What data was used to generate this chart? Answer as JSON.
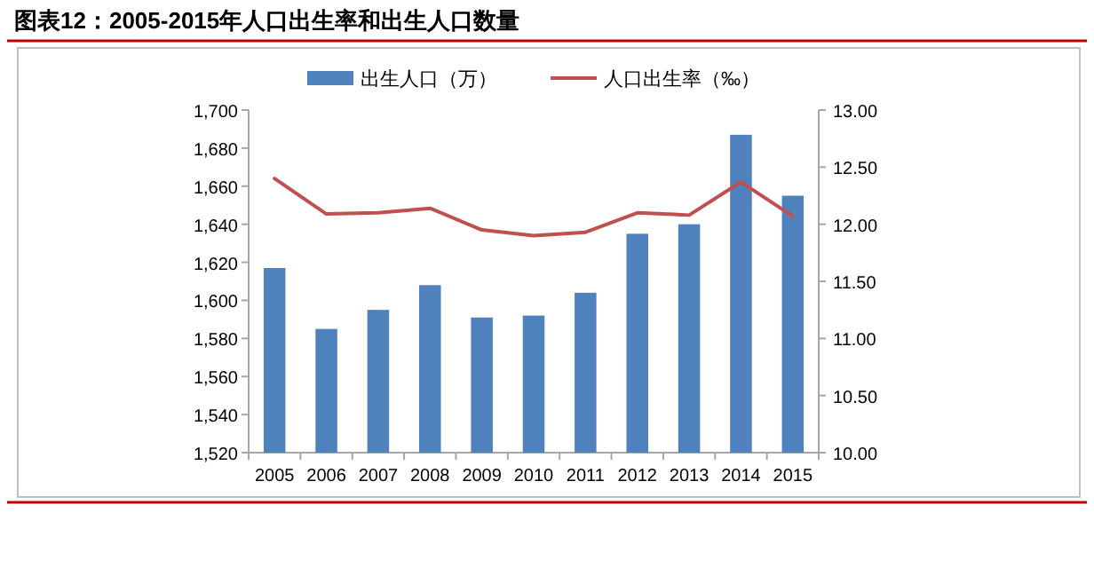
{
  "chart_data": {
    "type": "bar",
    "title": "图表12：2005-2015年人口出生率和出生人口数量",
    "categories": [
      "2005",
      "2006",
      "2007",
      "2008",
      "2009",
      "2010",
      "2011",
      "2012",
      "2013",
      "2014",
      "2015"
    ],
    "series": [
      {
        "name": "出生人口（万）",
        "color": "#4f81bd",
        "values": [
          1617,
          1585,
          1595,
          1608,
          1591,
          1592,
          1604,
          1635,
          1640,
          1687,
          1655
        ]
      },
      {
        "name": "人口出生率（‰）",
        "type": "line",
        "axis": "y2",
        "color": "#c0504d",
        "values": [
          12.4,
          12.09,
          12.1,
          12.14,
          11.95,
          11.9,
          11.93,
          12.1,
          12.08,
          12.37,
          12.07
        ]
      }
    ],
    "ylim": [
      1520,
      1700
    ],
    "yticks": [
      {
        "value": 1520,
        "label": "1,520"
      },
      {
        "value": 1540,
        "label": "1,540"
      },
      {
        "value": 1560,
        "label": "1,560"
      },
      {
        "value": 1580,
        "label": "1,580"
      },
      {
        "value": 1600,
        "label": "1,600"
      },
      {
        "value": 1620,
        "label": "1,620"
      },
      {
        "value": 1640,
        "label": "1,640"
      },
      {
        "value": 1660,
        "label": "1,660"
      },
      {
        "value": 1680,
        "label": "1,680"
      },
      {
        "value": 1700,
        "label": "1,700"
      }
    ],
    "y2lim": [
      10,
      13
    ],
    "y2ticks": [
      {
        "value": 10,
        "label": "10.00"
      },
      {
        "value": 10.5,
        "label": "10.50"
      },
      {
        "value": 11,
        "label": "11.00"
      },
      {
        "value": 11.5,
        "label": "11.50"
      },
      {
        "value": 12,
        "label": "12.00"
      },
      {
        "value": 12.5,
        "label": "12.50"
      },
      {
        "value": 13,
        "label": "13.00"
      }
    ],
    "legend": "top",
    "grid": false,
    "marker": "none",
    "line_style": "solid"
  }
}
